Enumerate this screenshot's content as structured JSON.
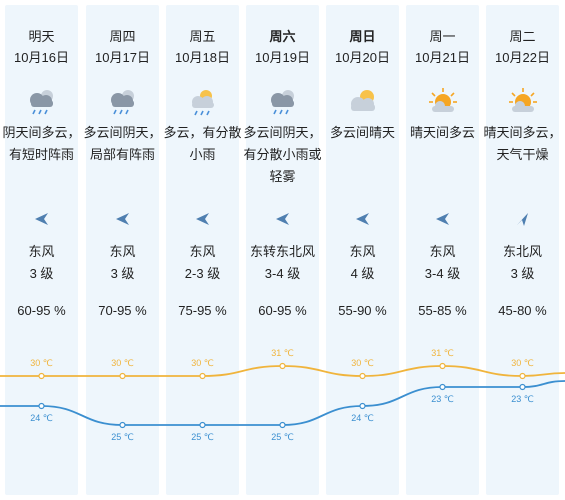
{
  "days": [
    {
      "day": "明天",
      "date": "10月16日",
      "weather": "阴天间多云，有短时阵雨",
      "icon": "cloudy-rain-icon",
      "wind": "东风",
      "level": "3 级",
      "humidity": "60-95 %",
      "high": "30 ℃",
      "low": "24 ℃",
      "high_c": 30,
      "low_c": 24,
      "wind_from": "east",
      "bold": false
    },
    {
      "day": "周四",
      "date": "10月17日",
      "weather": "多云间阴天，局部有阵雨",
      "icon": "cloudy-rain-icon",
      "wind": "东风",
      "level": "3 级",
      "humidity": "70-95 %",
      "high": "30 ℃",
      "low": "25 ℃",
      "high_c": 30,
      "low_c": 25,
      "wind_from": "east",
      "bold": false
    },
    {
      "day": "周五",
      "date": "10月18日",
      "weather": "多云，有分散小雨",
      "icon": "sun-cloud-rain-icon",
      "wind": "东风",
      "level": "2-3 级",
      "humidity": "75-95 %",
      "high": "30 ℃",
      "low": "25 ℃",
      "high_c": 30,
      "low_c": 25,
      "wind_from": "east",
      "bold": false
    },
    {
      "day": "周六",
      "date": "10月19日",
      "weather": "多云间阴天，有分散小雨或轻雾",
      "icon": "cloudy-rain-icon",
      "wind": "东转东北风",
      "level": "3-4 级",
      "humidity": "60-95 %",
      "high": "31 ℃",
      "low": "25 ℃",
      "high_c": 31,
      "low_c": 25,
      "wind_from": "east",
      "bold": true
    },
    {
      "day": "周日",
      "date": "10月20日",
      "weather": "多云间晴天",
      "icon": "sun-cloud-icon",
      "wind": "东风",
      "level": "4 级",
      "humidity": "55-90 %",
      "high": "30 ℃",
      "low": "24 ℃",
      "high_c": 30,
      "low_c": 24,
      "wind_from": "east",
      "bold": true
    },
    {
      "day": "周一",
      "date": "10月21日",
      "weather": "晴天间多云",
      "icon": "sun-behind-cloud-icon",
      "wind": "东风",
      "level": "3-4 级",
      "humidity": "55-85 %",
      "high": "31 ℃",
      "low": "23 ℃",
      "high_c": 31,
      "low_c": 23,
      "wind_from": "east",
      "bold": false
    },
    {
      "day": "周二",
      "date": "10月22日",
      "weather": "晴天间多云，天气干燥",
      "icon": "sun-behind-cloud-icon",
      "wind": "东北风",
      "level": "3 级",
      "humidity": "45-80 %",
      "high": "30 ℃",
      "low": "23 ℃",
      "high_c": 30,
      "low_c": 23,
      "wind_from": "northeast",
      "bold": false
    }
  ],
  "colors": {
    "high_line": "#f0b43c",
    "low_line": "#3b8fd0",
    "arrow": "#4f7fb0",
    "column_bg": "#eef6fc"
  }
}
